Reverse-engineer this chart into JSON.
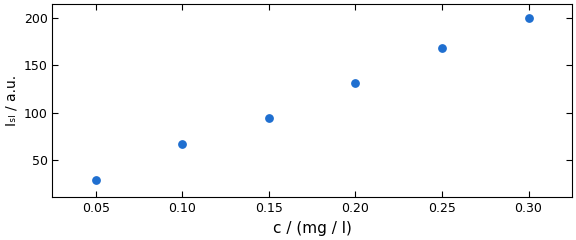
{
  "x": [
    0.05,
    0.1,
    0.15,
    0.2,
    0.25,
    0.3
  ],
  "y": [
    28,
    67,
    94,
    131,
    168,
    200
  ],
  "marker_color": "#1F6FD0",
  "marker_size": 28,
  "xlabel": "c / (mg / l)",
  "ylabel": "Iₛₗ / a.u.",
  "xlim": [
    0.025,
    0.325
  ],
  "ylim": [
    10,
    215
  ],
  "xticks": [
    0.05,
    0.1,
    0.15,
    0.2,
    0.25,
    0.3
  ],
  "yticks": [
    50,
    100,
    150,
    200
  ],
  "background_color": "#ffffff",
  "xlabel_fontsize": 11,
  "ylabel_fontsize": 10,
  "tick_fontsize": 9
}
